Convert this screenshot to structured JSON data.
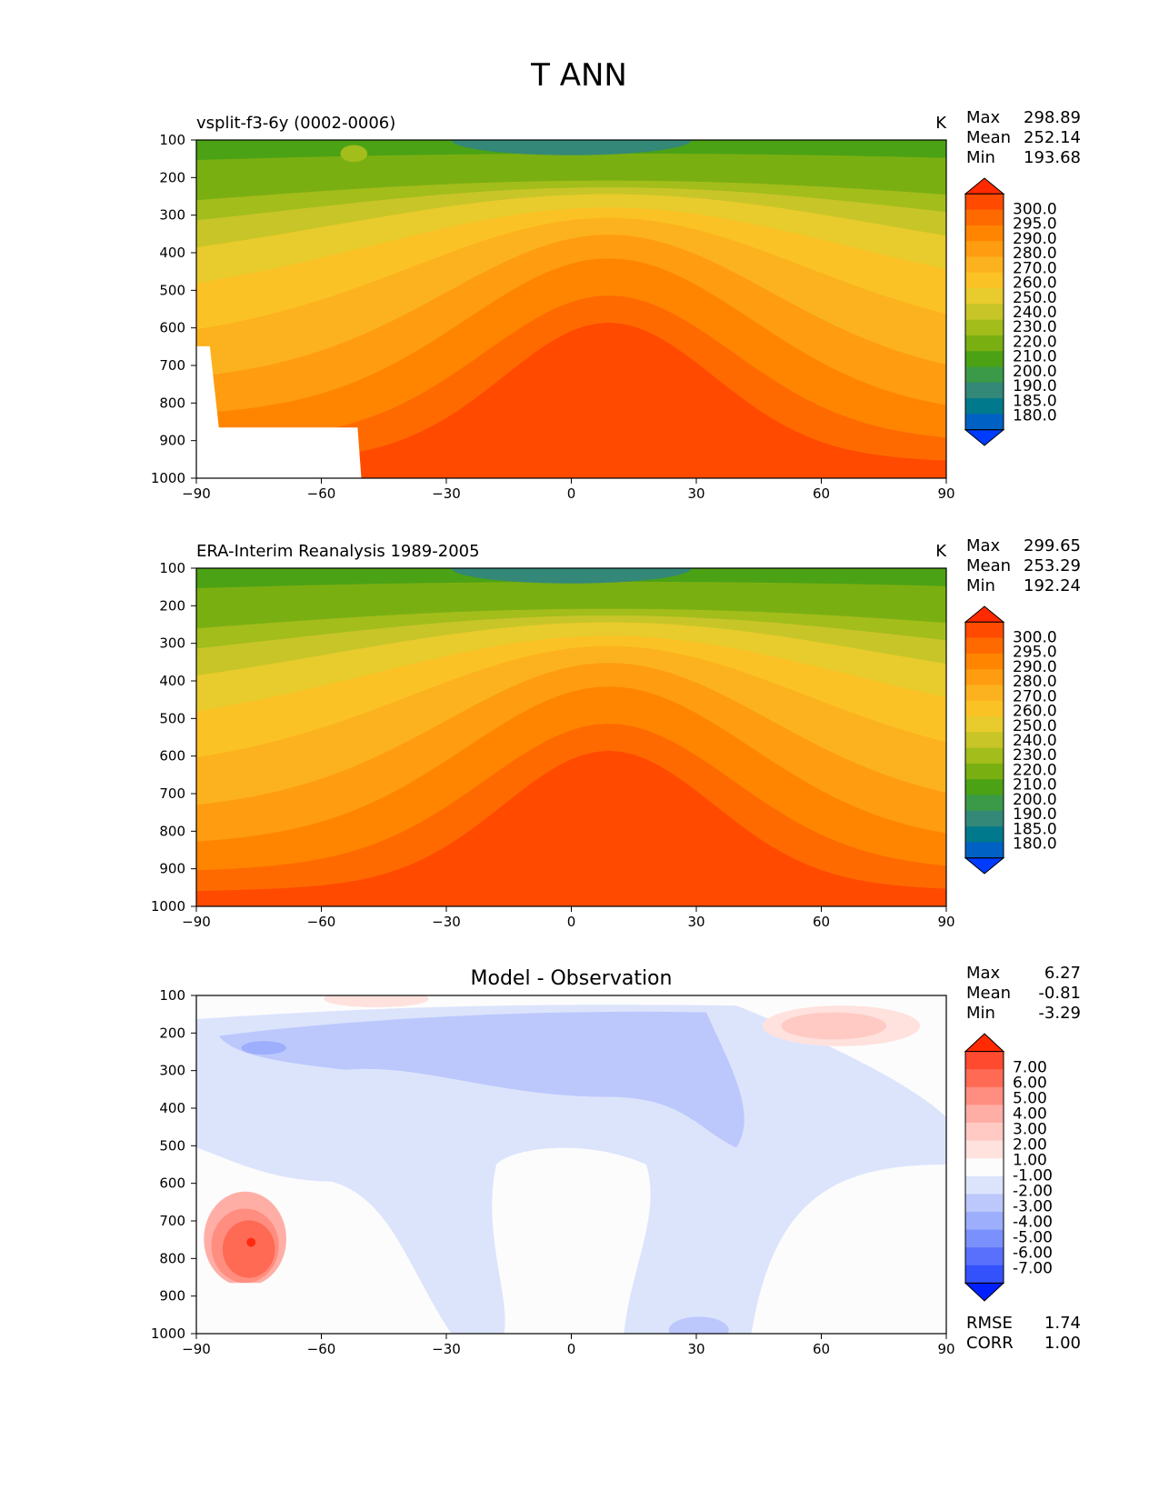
{
  "figure_title": "T ANN",
  "chart_data": [
    {
      "type": "heatmap",
      "title": "vsplit-f3-6y (0002-0006)",
      "units": "K",
      "xlim": [
        -90,
        90
      ],
      "ylim": [
        1000,
        100
      ],
      "x_ticks": [
        "−90",
        "−60",
        "−30",
        "0",
        "30",
        "60",
        "90"
      ],
      "y_ticks": [
        "100",
        "200",
        "300",
        "400",
        "500",
        "600",
        "700",
        "800",
        "900",
        "1000"
      ],
      "stats": [
        {
          "label": "Max",
          "value": "298.89"
        },
        {
          "label": "Mean",
          "value": "252.14"
        },
        {
          "label": "Min",
          "value": "193.68"
        }
      ],
      "colorbar": {
        "labels": [
          "300.0",
          "295.0",
          "290.0",
          "280.0",
          "270.0",
          "260.0",
          "250.0",
          "240.0",
          "230.0",
          "220.0",
          "210.0",
          "200.0",
          "190.0",
          "185.0",
          "180.0"
        ],
        "colors": [
          "#ff2a00",
          "#ff4a00",
          "#ff6a00",
          "#ff8500",
          "#ff9c10",
          "#fcb21e",
          "#fbc225",
          "#e8cb2c",
          "#c8c528",
          "#a3bd1b",
          "#7aaf12",
          "#4ba215",
          "#3a9a48",
          "#338878",
          "#00798d",
          "#0061c4",
          "#003cff"
        ],
        "arrow_top": "#ff2a00",
        "arrow_bottom": "#003cff"
      }
    },
    {
      "type": "heatmap",
      "title": "ERA-Interim Reanalysis 1989-2005",
      "units": "K",
      "xlim": [
        -90,
        90
      ],
      "ylim": [
        1000,
        100
      ],
      "x_ticks": [
        "−90",
        "−60",
        "−30",
        "0",
        "30",
        "60",
        "90"
      ],
      "y_ticks": [
        "100",
        "200",
        "300",
        "400",
        "500",
        "600",
        "700",
        "800",
        "900",
        "1000"
      ],
      "stats": [
        {
          "label": "Max",
          "value": "299.65"
        },
        {
          "label": "Mean",
          "value": "253.29"
        },
        {
          "label": "Min",
          "value": "192.24"
        }
      ],
      "colorbar": {
        "labels": [
          "300.0",
          "295.0",
          "290.0",
          "280.0",
          "270.0",
          "260.0",
          "250.0",
          "240.0",
          "230.0",
          "220.0",
          "210.0",
          "200.0",
          "190.0",
          "185.0",
          "180.0"
        ],
        "colors": [
          "#ff2a00",
          "#ff4a00",
          "#ff6a00",
          "#ff8500",
          "#ff9c10",
          "#fcb21e",
          "#fbc225",
          "#e8cb2c",
          "#c8c528",
          "#a3bd1b",
          "#7aaf12",
          "#4ba215",
          "#3a9a48",
          "#338878",
          "#00798d",
          "#0061c4",
          "#003cff"
        ],
        "arrow_top": "#ff2a00",
        "arrow_bottom": "#003cff"
      }
    },
    {
      "type": "heatmap",
      "title": "Model - Observation",
      "xlim": [
        -90,
        90
      ],
      "ylim": [
        1000,
        100
      ],
      "x_ticks": [
        "−90",
        "−60",
        "−30",
        "0",
        "30",
        "60",
        "90"
      ],
      "y_ticks": [
        "100",
        "200",
        "300",
        "400",
        "500",
        "600",
        "700",
        "800",
        "900",
        "1000"
      ],
      "stats": [
        {
          "label": "Max",
          "value": "6.27"
        },
        {
          "label": "Mean",
          "value": "-0.81"
        },
        {
          "label": "Min",
          "value": "-3.29"
        }
      ],
      "colorbar": {
        "labels": [
          "7.00",
          "6.00",
          "5.00",
          "4.00",
          "3.00",
          "2.00",
          "1.00",
          "-1.00",
          "-2.00",
          "-3.00",
          "-4.00",
          "-5.00",
          "-6.00",
          "-7.00"
        ],
        "colors": [
          "#ff2a10",
          "#ff4a30",
          "#ff6a55",
          "#ff8e80",
          "#ffaea6",
          "#ffcac4",
          "#ffe1dd",
          "#fcfcfc",
          "#dce4fc",
          "#bcc8fc",
          "#9caefc",
          "#7a90fc",
          "#5870fc",
          "#3452fc",
          "#1430fc"
        ],
        "arrow_top": "#ff2a00",
        "arrow_bottom": "#0020ff"
      },
      "metrics": [
        {
          "label": "RMSE",
          "value": "1.74"
        },
        {
          "label": "CORR",
          "value": "1.00"
        }
      ]
    }
  ]
}
